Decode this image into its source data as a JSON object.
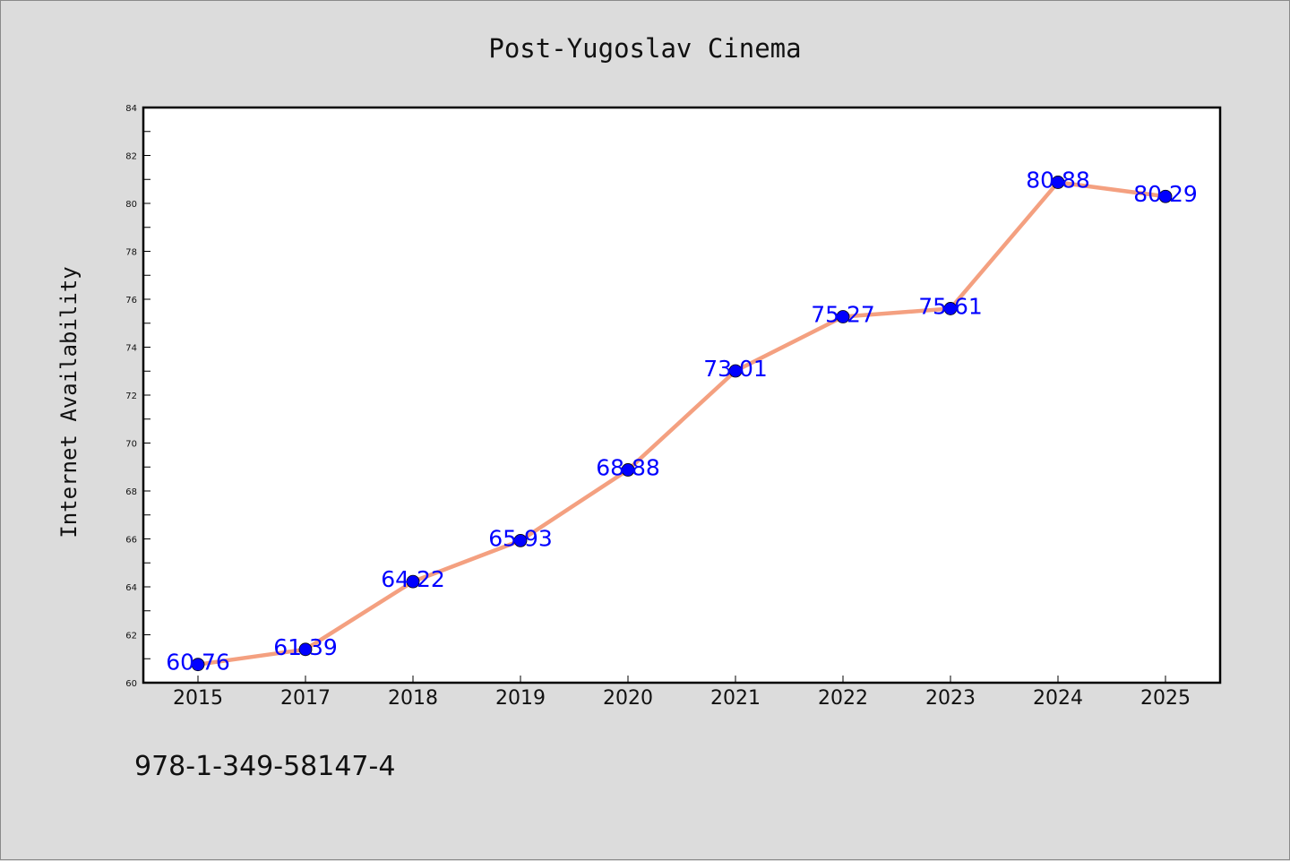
{
  "chart_data": {
    "type": "line",
    "title": "Post-Yugoslav Cinema",
    "xlabel": "",
    "ylabel": "Internet Availability",
    "categories": [
      "2015",
      "2017",
      "2018",
      "2019",
      "2020",
      "2021",
      "2022",
      "2023",
      "2024",
      "2025"
    ],
    "values": [
      60.76,
      61.39,
      64.22,
      65.93,
      68.88,
      73.01,
      75.27,
      75.61,
      80.88,
      80.29
    ],
    "value_labels": [
      "60.76",
      "61.39",
      "64.22",
      "65.93",
      "68.88",
      "73.01",
      "75.27",
      "75.61",
      "80.88",
      "80.29"
    ],
    "ylim": [
      60,
      84
    ],
    "yticks": [
      "60",
      "62",
      "64",
      "66",
      "68",
      "70",
      "72",
      "74",
      "76",
      "78",
      "80",
      "82",
      "84"
    ],
    "grid": false,
    "line_color": "#f4a080",
    "marker_color": "#0000ff",
    "label_color": "#0000ff"
  },
  "annotation": "978-1-349-58147-4"
}
